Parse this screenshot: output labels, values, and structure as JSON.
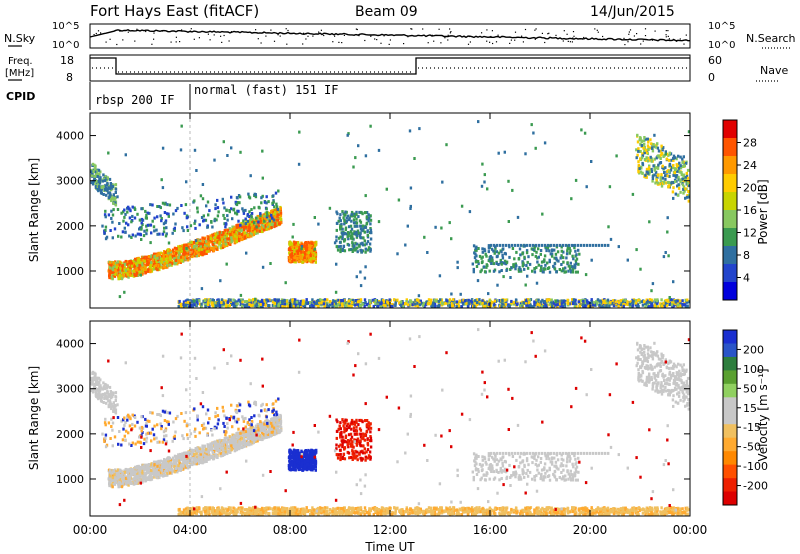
{
  "header": {
    "title": "Fort Hays East (fitACF)",
    "beam": "Beam 09",
    "date": "14/Jun/2015"
  },
  "panel_nsky": {
    "left_label": "N.Sky",
    "right_label": "N.Search",
    "left_ticks": [
      "10^5",
      "10^0"
    ],
    "right_ticks": [
      "10^5",
      "10^0"
    ]
  },
  "panel_freq": {
    "left_label_1": "Freq.",
    "left_label_2": "[MHz]",
    "right_label": "Nave",
    "left_ticks": [
      "18",
      "8"
    ],
    "right_ticks": [
      "60",
      "0"
    ]
  },
  "panel_cpid": {
    "label": "CPID",
    "modes": [
      "rbsp 200 IF",
      "normal (fast) 151 IF"
    ]
  },
  "chart_data": [
    {
      "type": "heatmap",
      "name": "power",
      "xlabel": "",
      "ylabel": "Slant Range [km]",
      "xlim": [
        "00:00",
        "24:00"
      ],
      "ylim": [
        180,
        4500
      ],
      "yticks": [
        "1000",
        "2000",
        "3000",
        "4000"
      ],
      "xticks": [
        "00:00",
        "04:00",
        "08:00",
        "12:00",
        "16:00",
        "20:00",
        "00:00"
      ],
      "colorbar": {
        "label": "Power [dB]",
        "ticks": [
          "28",
          "24",
          "20",
          "16",
          "12",
          "8",
          "4"
        ],
        "colors": [
          "#e00000",
          "#ff5500",
          "#ff9900",
          "#ffcc00",
          "#c8d400",
          "#88c860",
          "#3a9a50",
          "#2f6fa0",
          "#2244cc",
          "#0000dd"
        ]
      }
    },
    {
      "type": "heatmap",
      "name": "velocity",
      "xlabel": "Time UT",
      "ylabel": "Slant Range [km]",
      "xlim": [
        "00:00",
        "24:00"
      ],
      "ylim": [
        180,
        4500
      ],
      "yticks": [
        "1000",
        "2000",
        "3000",
        "4000"
      ],
      "xticks": [
        "00:00",
        "04:00",
        "08:00",
        "12:00",
        "16:00",
        "20:00",
        "00:00"
      ],
      "colorbar": {
        "label": "Velocity [m s⁻¹]",
        "ticks": [
          "200",
          "100",
          "50",
          "15",
          "-15",
          "-50",
          "-100",
          "-200"
        ],
        "colors": [
          "#1a2fd0",
          "#2a55c8",
          "#2e7e3e",
          "#5aa030",
          "#90d060",
          "#c8c8c8",
          "#c8c8c8",
          "#f0c060",
          "#ffaa30",
          "#ff8800",
          "#ff5000",
          "#ee2000",
          "#dd0000"
        ]
      }
    }
  ]
}
